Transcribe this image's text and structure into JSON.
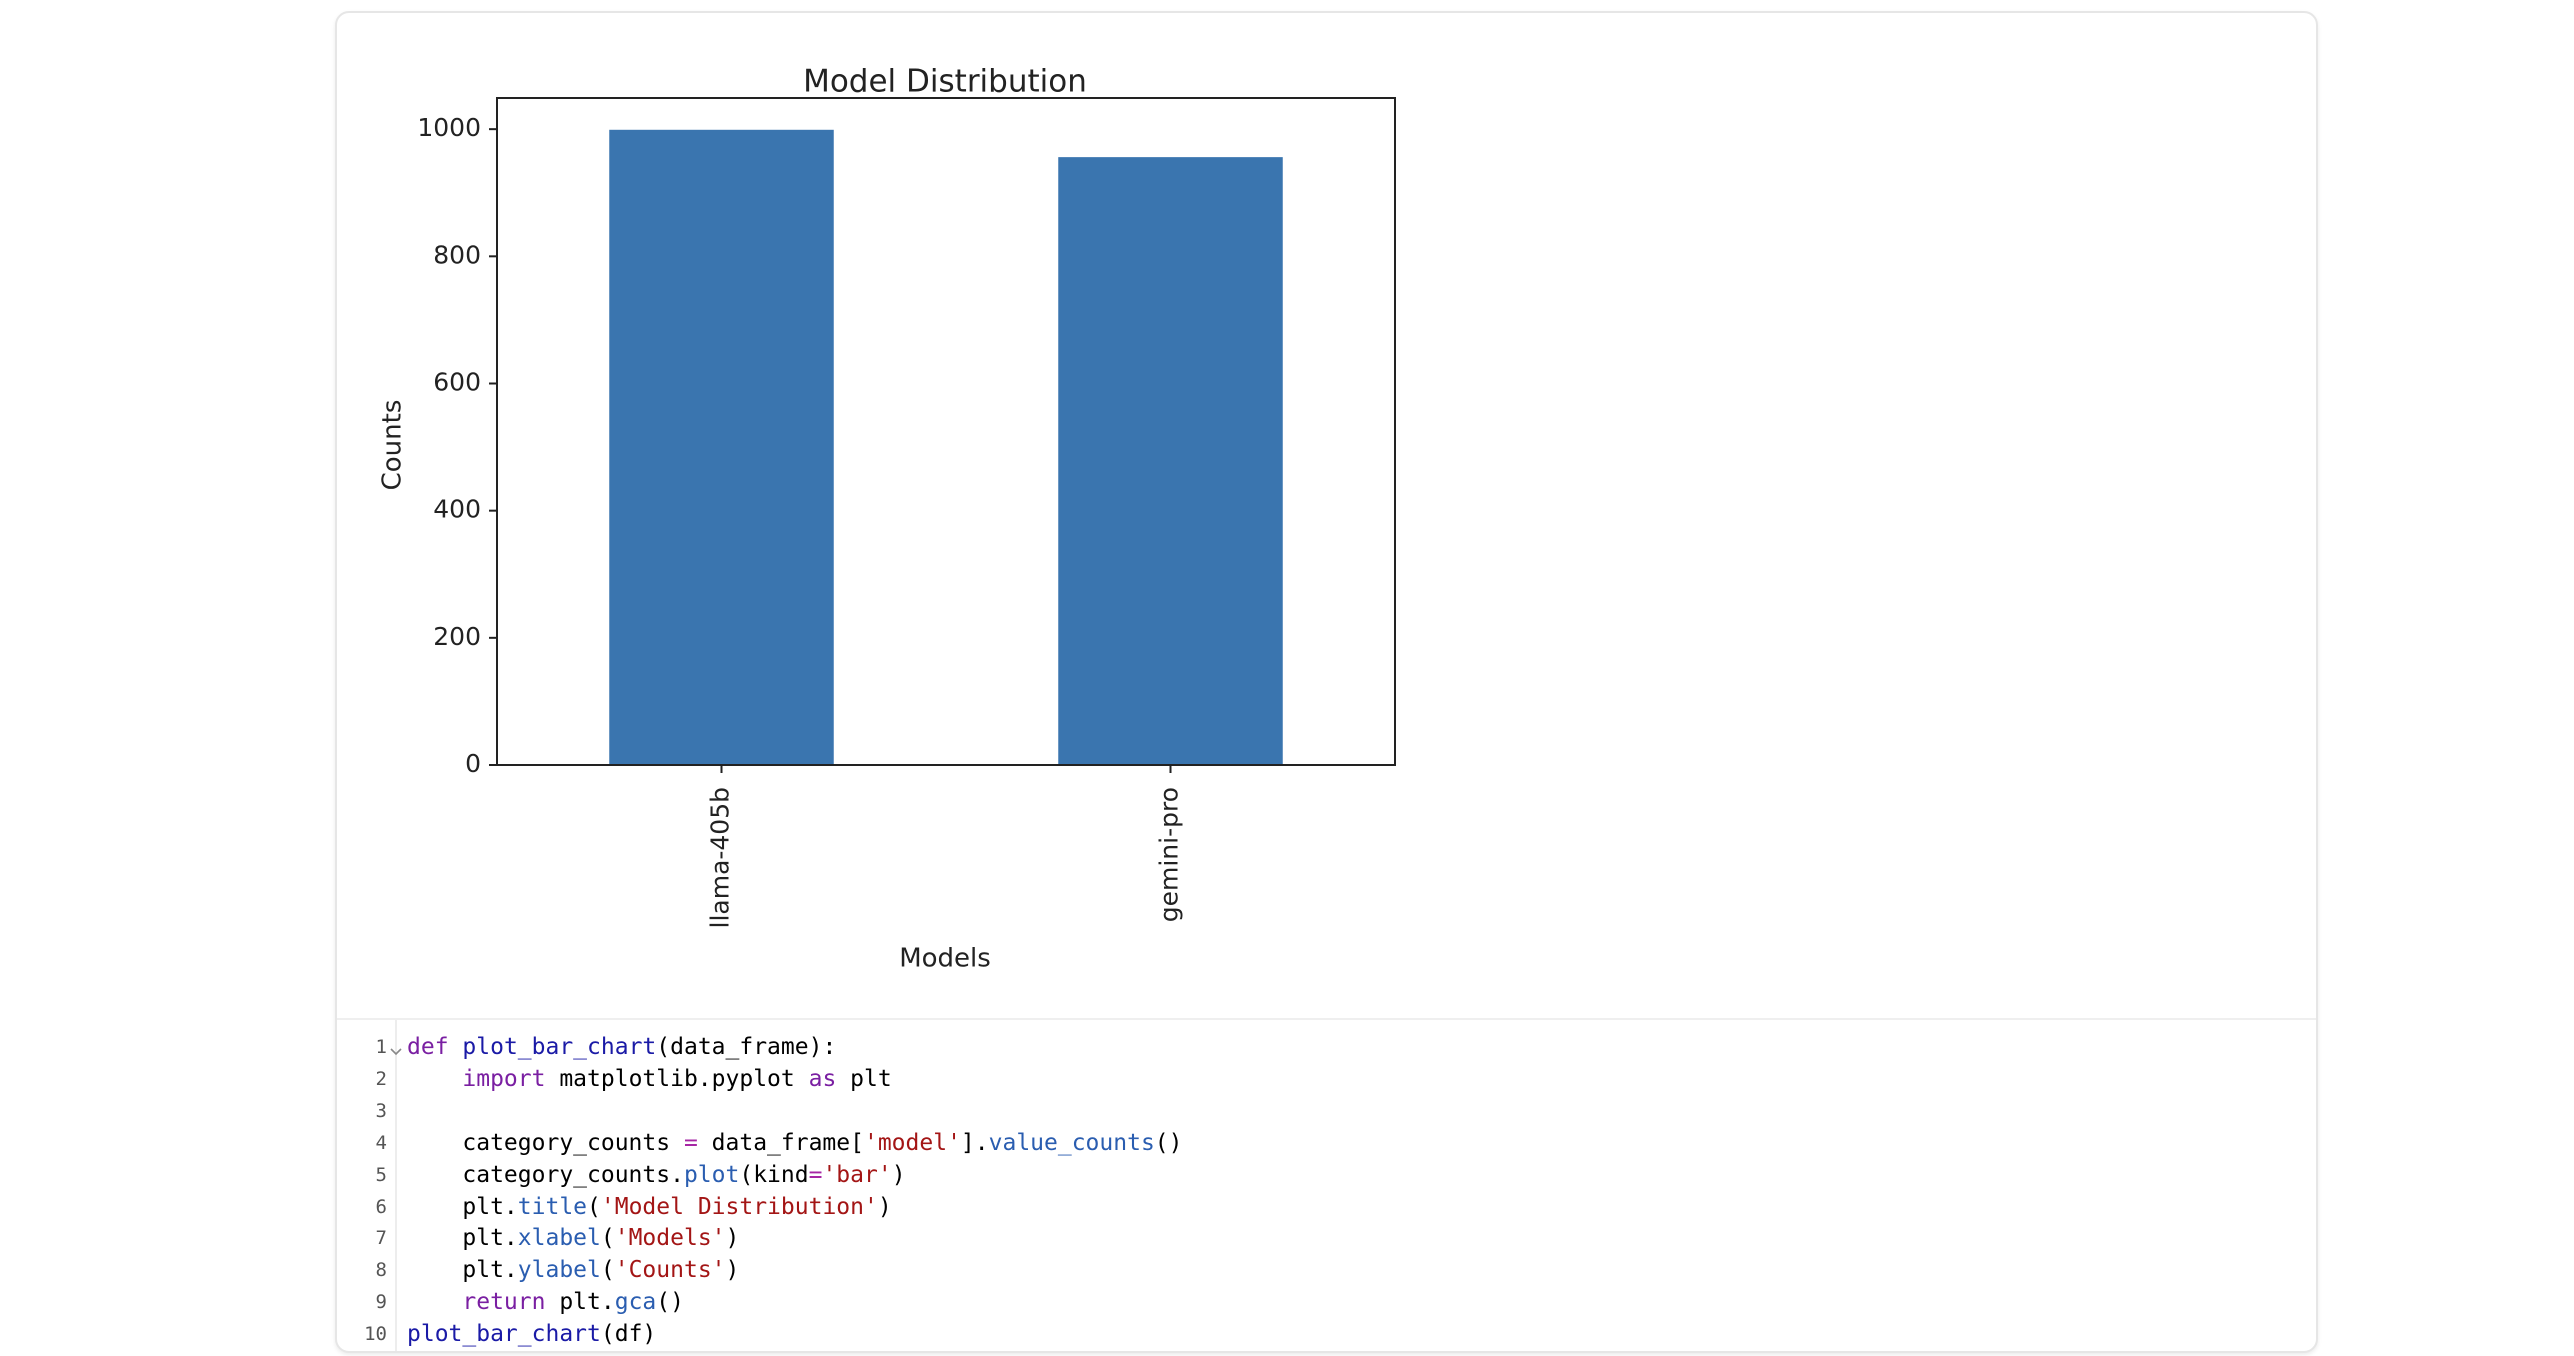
{
  "chart_data": {
    "type": "bar",
    "title": "Model Distribution",
    "x_label": "Models",
    "y_label": "Counts",
    "categories": [
      "llama-405b",
      "gemini-pro"
    ],
    "values": [
      999,
      956
    ],
    "color": "#3a75af",
    "ylim": [
      0,
      1049
    ],
    "yticks": [
      0,
      200,
      400,
      600,
      800,
      1000
    ],
    "grid": false
  },
  "code": {
    "lines": [
      {
        "number": 1,
        "tokens": [
          {
            "text": "def",
            "color": "#7a1fa2"
          },
          {
            "text": " ",
            "color": "#000000"
          },
          {
            "text": "plot_bar_chart",
            "color": "#1a1aa6"
          },
          {
            "text": "(data_frame):",
            "color": "#000000"
          }
        ]
      },
      {
        "number": 2,
        "tokens": [
          {
            "text": "    ",
            "color": "#000000"
          },
          {
            "text": "import",
            "color": "#7a1fa2"
          },
          {
            "text": " matplotlib.pyplot ",
            "color": "#000000"
          },
          {
            "text": "as",
            "color": "#7a1fa2"
          },
          {
            "text": " plt",
            "color": "#000000"
          }
        ]
      },
      {
        "number": 3,
        "tokens": []
      },
      {
        "number": 4,
        "tokens": [
          {
            "text": "    category_counts ",
            "color": "#000000"
          },
          {
            "text": "=",
            "color": "#a626a4"
          },
          {
            "text": " data_frame[",
            "color": "#000000"
          },
          {
            "text": "'model'",
            "color": "#a31515"
          },
          {
            "text": "].",
            "color": "#000000"
          },
          {
            "text": "value_counts",
            "color": "#2a5db0"
          },
          {
            "text": "()",
            "color": "#000000"
          }
        ]
      },
      {
        "number": 5,
        "tokens": [
          {
            "text": "    category_counts.",
            "color": "#000000"
          },
          {
            "text": "plot",
            "color": "#2a5db0"
          },
          {
            "text": "(kind",
            "color": "#000000"
          },
          {
            "text": "=",
            "color": "#a626a4"
          },
          {
            "text": "'bar'",
            "color": "#a31515"
          },
          {
            "text": ")",
            "color": "#000000"
          }
        ]
      },
      {
        "number": 6,
        "tokens": [
          {
            "text": "    plt.",
            "color": "#000000"
          },
          {
            "text": "title",
            "color": "#2a5db0"
          },
          {
            "text": "(",
            "color": "#000000"
          },
          {
            "text": "'Model Distribution'",
            "color": "#a31515"
          },
          {
            "text": ")",
            "color": "#000000"
          }
        ]
      },
      {
        "number": 7,
        "tokens": [
          {
            "text": "    plt.",
            "color": "#000000"
          },
          {
            "text": "xlabel",
            "color": "#2a5db0"
          },
          {
            "text": "(",
            "color": "#000000"
          },
          {
            "text": "'Models'",
            "color": "#a31515"
          },
          {
            "text": ")",
            "color": "#000000"
          }
        ]
      },
      {
        "number": 8,
        "tokens": [
          {
            "text": "    plt.",
            "color": "#000000"
          },
          {
            "text": "ylabel",
            "color": "#2a5db0"
          },
          {
            "text": "(",
            "color": "#000000"
          },
          {
            "text": "'Counts'",
            "color": "#a31515"
          },
          {
            "text": ")",
            "color": "#000000"
          }
        ]
      },
      {
        "number": 9,
        "tokens": [
          {
            "text": "    ",
            "color": "#000000"
          },
          {
            "text": "return",
            "color": "#7a1fa2"
          },
          {
            "text": " plt.",
            "color": "#000000"
          },
          {
            "text": "gca",
            "color": "#2a5db0"
          },
          {
            "text": "()",
            "color": "#000000"
          }
        ]
      },
      {
        "number": 10,
        "tokens": [
          {
            "text": "plot_bar_chart",
            "color": "#1a1aa6"
          },
          {
            "text": "(df)",
            "color": "#000000"
          }
        ]
      }
    ]
  }
}
